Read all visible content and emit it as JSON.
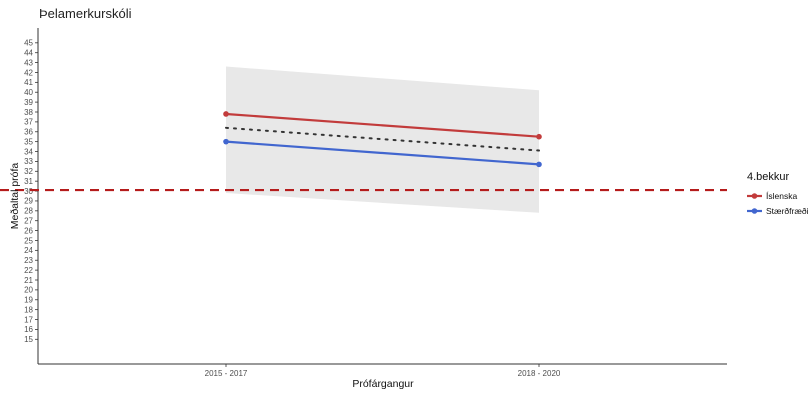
{
  "chart_data": {
    "type": "line",
    "title": "Þelamerkurskóli",
    "xlabel": "Prófárgangur",
    "ylabel": "Meðaltal prófa",
    "categories": [
      "2015 - 2017",
      "2018 - 2020"
    ],
    "ylim": [
      12.5,
      46.5
    ],
    "yticks": [
      15,
      16,
      17,
      18,
      19,
      20,
      21,
      22,
      23,
      24,
      25,
      26,
      27,
      28,
      29,
      30,
      31,
      32,
      33,
      34,
      35,
      36,
      37,
      38,
      39,
      40,
      41,
      42,
      43,
      44,
      45
    ],
    "series": [
      {
        "name": "Íslenska",
        "values": [
          37.8,
          35.5
        ],
        "color": "#c23b3b"
      },
      {
        "name": "Stærðfræði",
        "values": [
          35.0,
          32.7
        ],
        "color": "#4166cf"
      }
    ],
    "mean_line": {
      "values": [
        36.4,
        34.1
      ],
      "color": "#333333",
      "style": "dotted"
    },
    "confidence_band": {
      "upper": [
        42.6,
        40.2
      ],
      "lower": [
        29.8,
        27.8
      ],
      "color": "#e8e8e8"
    },
    "reference_line": {
      "value": 30.1,
      "color": "#b51c1c",
      "style": "dashed"
    },
    "legend": {
      "title": "4.bekkur",
      "position": "right"
    },
    "grid": false
  }
}
